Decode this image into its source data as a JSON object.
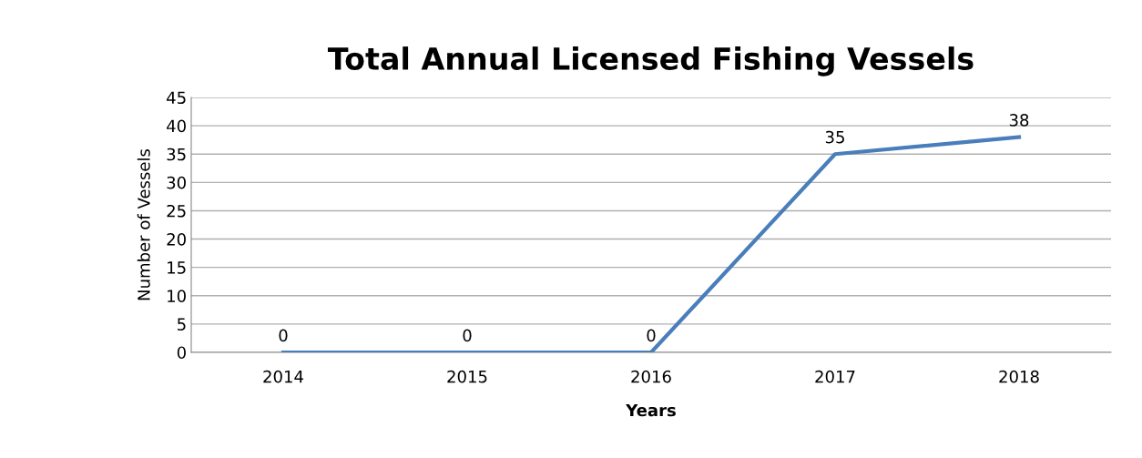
{
  "chart_data": {
    "type": "line",
    "title": "Total Annual Licensed Fishing Vessels",
    "xlabel": "Years",
    "ylabel": "Number of Vessels",
    "categories": [
      "2014",
      "2015",
      "2016",
      "2017",
      "2018"
    ],
    "series": [
      {
        "color": "#4a7ebb",
        "values": [
          0,
          0,
          0,
          35,
          38
        ]
      }
    ],
    "ylim": [
      0,
      45
    ],
    "yticks": [
      0,
      5,
      10,
      15,
      20,
      25,
      30,
      35,
      40,
      45
    ],
    "grid": "y",
    "data_labels": true,
    "marker": "none",
    "line_style": "solid"
  }
}
